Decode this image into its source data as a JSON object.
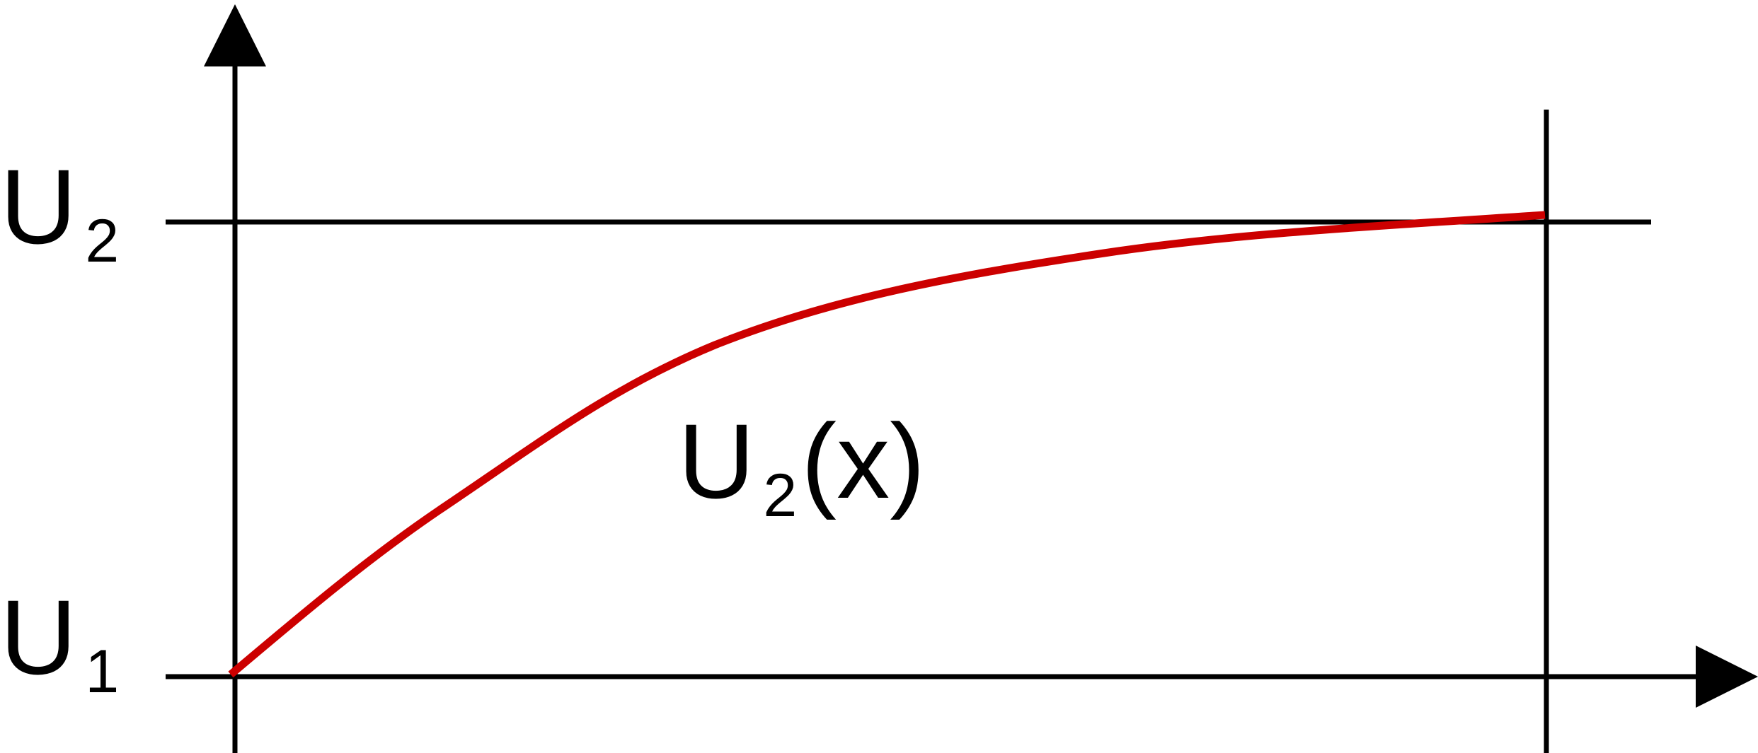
{
  "labels": {
    "upper_level": {
      "main": "U",
      "sub": "2"
    },
    "lower_level": {
      "main": "U",
      "sub": "1"
    },
    "curve_label": {
      "main": "U",
      "sub": "2",
      "suffix": "(x)"
    }
  },
  "colors": {
    "axes": "#000000",
    "curve": "#cc0000",
    "background": "#ffffff"
  },
  "icons": {
    "y_axis_arrow": "arrow-up-icon",
    "x_axis_arrow": "arrow-right-icon"
  }
}
